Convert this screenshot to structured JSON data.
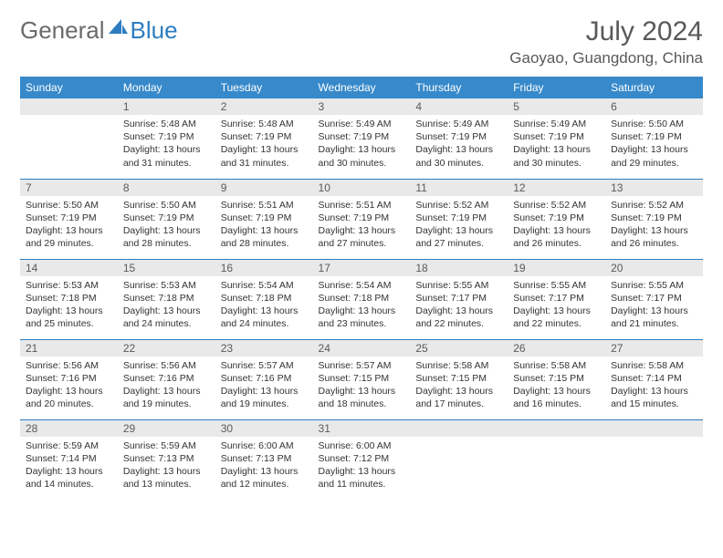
{
  "logo": {
    "general": "General",
    "blue": "Blue"
  },
  "title": "July 2024",
  "location": "Gaoyao, Guangdong, China",
  "colors": {
    "header_bg": "#3789ca",
    "header_text": "#ffffff",
    "daynum_bg": "#e9e9e9",
    "border": "#2d7dc0",
    "title_color": "#595959",
    "logo_gray": "#6a6a6a",
    "logo_blue": "#2d7dc0"
  },
  "weekdays": [
    "Sunday",
    "Monday",
    "Tuesday",
    "Wednesday",
    "Thursday",
    "Friday",
    "Saturday"
  ],
  "weeks": [
    [
      {
        "n": "",
        "sr": "",
        "ss": "",
        "dl": ""
      },
      {
        "n": "1",
        "sr": "Sunrise: 5:48 AM",
        "ss": "Sunset: 7:19 PM",
        "dl": "Daylight: 13 hours and 31 minutes."
      },
      {
        "n": "2",
        "sr": "Sunrise: 5:48 AM",
        "ss": "Sunset: 7:19 PM",
        "dl": "Daylight: 13 hours and 31 minutes."
      },
      {
        "n": "3",
        "sr": "Sunrise: 5:49 AM",
        "ss": "Sunset: 7:19 PM",
        "dl": "Daylight: 13 hours and 30 minutes."
      },
      {
        "n": "4",
        "sr": "Sunrise: 5:49 AM",
        "ss": "Sunset: 7:19 PM",
        "dl": "Daylight: 13 hours and 30 minutes."
      },
      {
        "n": "5",
        "sr": "Sunrise: 5:49 AM",
        "ss": "Sunset: 7:19 PM",
        "dl": "Daylight: 13 hours and 30 minutes."
      },
      {
        "n": "6",
        "sr": "Sunrise: 5:50 AM",
        "ss": "Sunset: 7:19 PM",
        "dl": "Daylight: 13 hours and 29 minutes."
      }
    ],
    [
      {
        "n": "7",
        "sr": "Sunrise: 5:50 AM",
        "ss": "Sunset: 7:19 PM",
        "dl": "Daylight: 13 hours and 29 minutes."
      },
      {
        "n": "8",
        "sr": "Sunrise: 5:50 AM",
        "ss": "Sunset: 7:19 PM",
        "dl": "Daylight: 13 hours and 28 minutes."
      },
      {
        "n": "9",
        "sr": "Sunrise: 5:51 AM",
        "ss": "Sunset: 7:19 PM",
        "dl": "Daylight: 13 hours and 28 minutes."
      },
      {
        "n": "10",
        "sr": "Sunrise: 5:51 AM",
        "ss": "Sunset: 7:19 PM",
        "dl": "Daylight: 13 hours and 27 minutes."
      },
      {
        "n": "11",
        "sr": "Sunrise: 5:52 AM",
        "ss": "Sunset: 7:19 PM",
        "dl": "Daylight: 13 hours and 27 minutes."
      },
      {
        "n": "12",
        "sr": "Sunrise: 5:52 AM",
        "ss": "Sunset: 7:19 PM",
        "dl": "Daylight: 13 hours and 26 minutes."
      },
      {
        "n": "13",
        "sr": "Sunrise: 5:52 AM",
        "ss": "Sunset: 7:19 PM",
        "dl": "Daylight: 13 hours and 26 minutes."
      }
    ],
    [
      {
        "n": "14",
        "sr": "Sunrise: 5:53 AM",
        "ss": "Sunset: 7:18 PM",
        "dl": "Daylight: 13 hours and 25 minutes."
      },
      {
        "n": "15",
        "sr": "Sunrise: 5:53 AM",
        "ss": "Sunset: 7:18 PM",
        "dl": "Daylight: 13 hours and 24 minutes."
      },
      {
        "n": "16",
        "sr": "Sunrise: 5:54 AM",
        "ss": "Sunset: 7:18 PM",
        "dl": "Daylight: 13 hours and 24 minutes."
      },
      {
        "n": "17",
        "sr": "Sunrise: 5:54 AM",
        "ss": "Sunset: 7:18 PM",
        "dl": "Daylight: 13 hours and 23 minutes."
      },
      {
        "n": "18",
        "sr": "Sunrise: 5:55 AM",
        "ss": "Sunset: 7:17 PM",
        "dl": "Daylight: 13 hours and 22 minutes."
      },
      {
        "n": "19",
        "sr": "Sunrise: 5:55 AM",
        "ss": "Sunset: 7:17 PM",
        "dl": "Daylight: 13 hours and 22 minutes."
      },
      {
        "n": "20",
        "sr": "Sunrise: 5:55 AM",
        "ss": "Sunset: 7:17 PM",
        "dl": "Daylight: 13 hours and 21 minutes."
      }
    ],
    [
      {
        "n": "21",
        "sr": "Sunrise: 5:56 AM",
        "ss": "Sunset: 7:16 PM",
        "dl": "Daylight: 13 hours and 20 minutes."
      },
      {
        "n": "22",
        "sr": "Sunrise: 5:56 AM",
        "ss": "Sunset: 7:16 PM",
        "dl": "Daylight: 13 hours and 19 minutes."
      },
      {
        "n": "23",
        "sr": "Sunrise: 5:57 AM",
        "ss": "Sunset: 7:16 PM",
        "dl": "Daylight: 13 hours and 19 minutes."
      },
      {
        "n": "24",
        "sr": "Sunrise: 5:57 AM",
        "ss": "Sunset: 7:15 PM",
        "dl": "Daylight: 13 hours and 18 minutes."
      },
      {
        "n": "25",
        "sr": "Sunrise: 5:58 AM",
        "ss": "Sunset: 7:15 PM",
        "dl": "Daylight: 13 hours and 17 minutes."
      },
      {
        "n": "26",
        "sr": "Sunrise: 5:58 AM",
        "ss": "Sunset: 7:15 PM",
        "dl": "Daylight: 13 hours and 16 minutes."
      },
      {
        "n": "27",
        "sr": "Sunrise: 5:58 AM",
        "ss": "Sunset: 7:14 PM",
        "dl": "Daylight: 13 hours and 15 minutes."
      }
    ],
    [
      {
        "n": "28",
        "sr": "Sunrise: 5:59 AM",
        "ss": "Sunset: 7:14 PM",
        "dl": "Daylight: 13 hours and 14 minutes."
      },
      {
        "n": "29",
        "sr": "Sunrise: 5:59 AM",
        "ss": "Sunset: 7:13 PM",
        "dl": "Daylight: 13 hours and 13 minutes."
      },
      {
        "n": "30",
        "sr": "Sunrise: 6:00 AM",
        "ss": "Sunset: 7:13 PM",
        "dl": "Daylight: 13 hours and 12 minutes."
      },
      {
        "n": "31",
        "sr": "Sunrise: 6:00 AM",
        "ss": "Sunset: 7:12 PM",
        "dl": "Daylight: 13 hours and 11 minutes."
      },
      {
        "n": "",
        "sr": "",
        "ss": "",
        "dl": ""
      },
      {
        "n": "",
        "sr": "",
        "ss": "",
        "dl": ""
      },
      {
        "n": "",
        "sr": "",
        "ss": "",
        "dl": ""
      }
    ]
  ]
}
